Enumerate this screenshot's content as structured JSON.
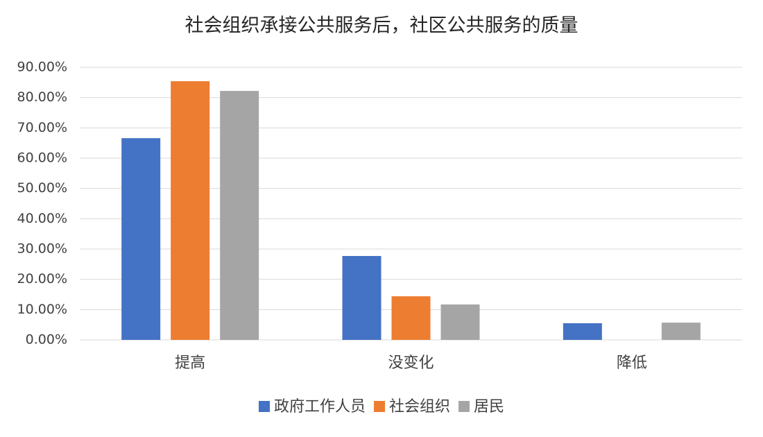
{
  "chart_data": {
    "type": "bar",
    "title": "社会组织承接公共服务后，社区公共服务的质量",
    "categories": [
      "提高",
      "没变化",
      "降低"
    ],
    "series": [
      {
        "name": "政府工作人员",
        "color": "#4472c4",
        "values": [
          66.6,
          27.7,
          5.5
        ]
      },
      {
        "name": "社会组织",
        "color": "#ed7d31",
        "values": [
          85.4,
          14.4,
          0
        ]
      },
      {
        "name": "居民",
        "color": "#a5a5a5",
        "values": [
          82.2,
          11.7,
          5.7
        ]
      }
    ],
    "ylim": [
      0,
      90
    ],
    "yticks": [
      {
        "value": 0,
        "label": "0.00%"
      },
      {
        "value": 10,
        "label": "10.00%"
      },
      {
        "value": 20,
        "label": "20.00%"
      },
      {
        "value": 30,
        "label": "30.00%"
      },
      {
        "value": 40,
        "label": "40.00%"
      },
      {
        "value": 50,
        "label": "50.00%"
      },
      {
        "value": 60,
        "label": "60.00%"
      },
      {
        "value": 70,
        "label": "70.00%"
      },
      {
        "value": 80,
        "label": "80.00%"
      },
      {
        "value": 90,
        "label": "90.00%"
      }
    ],
    "grid": true,
    "legend": "bottom"
  }
}
